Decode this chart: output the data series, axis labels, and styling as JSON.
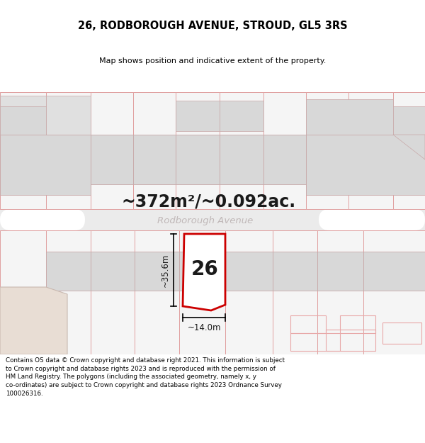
{
  "title": "26, RODBOROUGH AVENUE, STROUD, GL5 3RS",
  "subtitle": "Map shows position and indicative extent of the property.",
  "area_text": "~372m²/~0.092ac.",
  "street_name": "Rodborough Avenue",
  "property_number": "26",
  "dim_width": "~14.0m",
  "dim_height": "~35.6m",
  "footer": "Contains OS data © Crown copyright and database right 2021. This information is subject to Crown copyright and database rights 2023 and is reproduced with the permission of HM Land Registry. The polygons (including the associated geometry, namely x, y co-ordinates) are subject to Crown copyright and database rights 2023 Ordnance Survey 100026316.",
  "bg_color": "#ffffff",
  "map_bg": "#f8f8f8",
  "plot_edge": "#cc0000",
  "road_stripe_color": "#e8a8a8",
  "building_fill": "#d8d8d8",
  "building_edge": "#c8a8a8"
}
